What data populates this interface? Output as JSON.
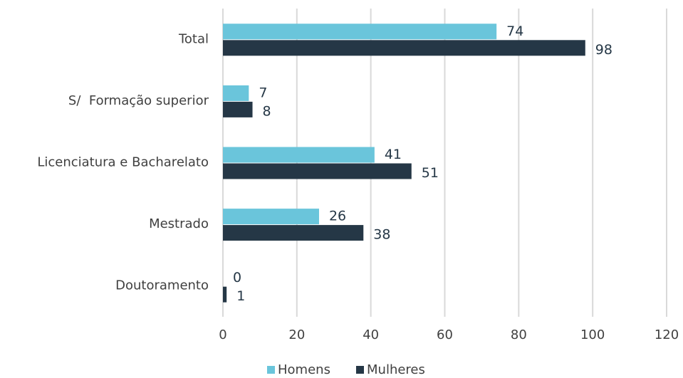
{
  "chart_data": {
    "type": "bar",
    "orientation": "horizontal",
    "categories": [
      "Total",
      "S/  Formação superior",
      "Licenciatura e Bacharelato",
      "Mestrado",
      "Doutoramento"
    ],
    "series": [
      {
        "name": "Homens",
        "color": "#6ac5db",
        "values": [
          74,
          7,
          41,
          26,
          0
        ]
      },
      {
        "name": "Mulheres",
        "color": "#253746",
        "values": [
          98,
          8,
          51,
          38,
          1
        ]
      }
    ],
    "xlim": [
      0,
      120
    ],
    "xticks": [
      0,
      20,
      40,
      60,
      80,
      100,
      120
    ],
    "grid": true,
    "legend": "bottom"
  }
}
